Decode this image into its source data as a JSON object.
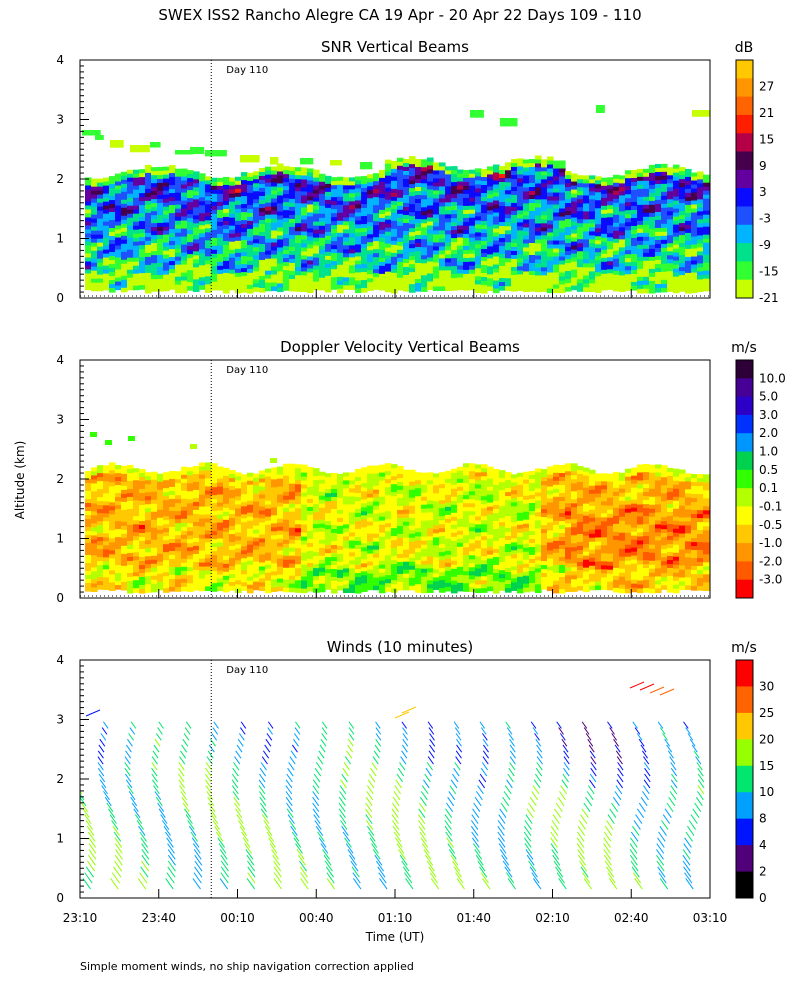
{
  "title": "SWEX ISS2 Rancho Alegre CA  19 Apr - 20 Apr 22 Days 109 - 110",
  "ylabel": "Altitude (km)",
  "xlabel": "Time (UT)",
  "footnote": "Simple moment winds, no ship navigation correction applied",
  "day_marker": "Day 110",
  "x_ticks": [
    "23:10",
    "23:40",
    "00:10",
    "00:40",
    "01:10",
    "01:40",
    "02:10",
    "02:40",
    "03:10"
  ],
  "chart_data": [
    {
      "type": "heatmap",
      "title": "SNR Vertical Beams",
      "ylabel": "Altitude (km)",
      "ylim": [
        0,
        4
      ],
      "y_ticks": [
        "0",
        "1",
        "2",
        "3",
        "4"
      ],
      "colorbar_unit": "dB",
      "colorbar_labels": [
        "27",
        "21",
        "15",
        "9",
        "3",
        "-3",
        "-9",
        "-15",
        "-21"
      ],
      "colorbar_colors": [
        "#ffc800",
        "#ff9600",
        "#ff6400",
        "#ff1e00",
        "#b40046",
        "#46004b",
        "#6400a0",
        "#0a0aff",
        "#1e50ff",
        "#00b4ff",
        "#00e18c",
        "#32ff32",
        "#c8ff00"
      ],
      "data_top_km": 2.1,
      "data_bottom_km": 0.15
    },
    {
      "type": "heatmap",
      "title": "Doppler Velocity Vertical Beams",
      "ylabel": "Altitude (km)",
      "ylim": [
        0,
        4
      ],
      "y_ticks": [
        "0",
        "1",
        "2",
        "3",
        "4"
      ],
      "colorbar_unit": "m/s",
      "colorbar_labels": [
        "10.0",
        "5.0",
        "3.0",
        "2.0",
        "1.0",
        "0.5",
        "0.1",
        "-0.1",
        "-0.5",
        "-1.0",
        "-2.0",
        "-3.0"
      ],
      "colorbar_colors": [
        "#2d0037",
        "#460096",
        "#2d00c8",
        "#0032ff",
        "#0096ff",
        "#00d250",
        "#32ff00",
        "#b4ff00",
        "#ffff00",
        "#ffc800",
        "#ff9600",
        "#ff5a00",
        "#ff0000"
      ],
      "data_top_km": 2.15,
      "data_bottom_km": 0.15
    },
    {
      "type": "wind_barbs",
      "title": "Winds (10 minutes)",
      "ylabel": "Altitude (km)",
      "ylim": [
        0,
        4
      ],
      "y_ticks": [
        "0",
        "1",
        "2",
        "3",
        "4"
      ],
      "colorbar_unit": "m/s",
      "colorbar_labels": [
        "30",
        "25",
        "20",
        "15",
        "10",
        "8",
        "4",
        "2",
        "0"
      ],
      "colorbar_colors": [
        "#ff0000",
        "#ff6400",
        "#ffc800",
        "#96ff00",
        "#00e66e",
        "#00a0ff",
        "#0014ff",
        "#500078",
        "#000000"
      ],
      "profile_count": 24,
      "typical_speed_ms": [
        10,
        15
      ],
      "note_high_level": "isolated barbs near 3.5 km at 02:40 - 02:50, speed ~30 m/s"
    }
  ]
}
